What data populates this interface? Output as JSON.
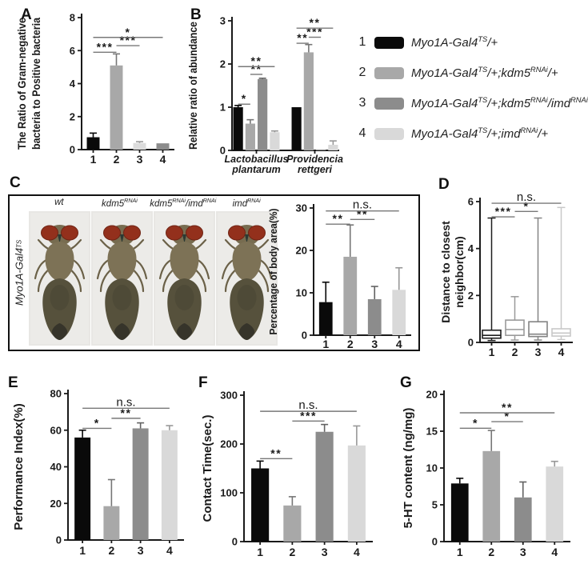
{
  "panel_letters": {
    "A": "A",
    "B": "B",
    "C": "C",
    "D": "D",
    "E": "E",
    "F": "F",
    "G": "G"
  },
  "group_colors": {
    "1": "#0a0a0a",
    "2": "#a8a8a8",
    "3": "#8c8c8c",
    "4": "#d9d9d9"
  },
  "legend": {
    "items": [
      {
        "number": "1",
        "color": "#0a0a0a",
        "parts": [
          {
            "t": "Myo1A-Gal4"
          },
          {
            "t": "TS",
            "sup": 1
          },
          {
            "t": "/+"
          }
        ]
      },
      {
        "number": "2",
        "color": "#a8a8a8",
        "parts": [
          {
            "t": "Myo1A-Gal4"
          },
          {
            "t": "TS",
            "sup": 1
          },
          {
            "t": "/+;kdm5"
          },
          {
            "t": "RNAi",
            "sup": 1
          },
          {
            "t": "/+"
          }
        ]
      },
      {
        "number": "3",
        "color": "#8c8c8c",
        "parts": [
          {
            "t": "Myo1A-Gal4"
          },
          {
            "t": "TS",
            "sup": 1
          },
          {
            "t": "/+;kdm5"
          },
          {
            "t": "RNAi",
            "sup": 1
          },
          {
            "t": "/imd"
          },
          {
            "t": "RNAi",
            "sup": 1
          }
        ]
      },
      {
        "number": "4",
        "color": "#d9d9d9",
        "parts": [
          {
            "t": "Myo1A-Gal4"
          },
          {
            "t": "TS",
            "sup": 1
          },
          {
            "t": "/+;imd"
          },
          {
            "t": "RNAi",
            "sup": 1
          },
          {
            "t": "/+"
          }
        ]
      }
    ]
  },
  "panel_c": {
    "side_label_parts": [
      {
        "t": "Myo1A-Gal4"
      },
      {
        "t": "TS",
        "sup": 1
      }
    ],
    "fly_labels": [
      [
        {
          "t": "wt"
        }
      ],
      [
        {
          "t": "kdm5"
        },
        {
          "t": "RNAi",
          "sup": 1
        }
      ],
      [
        {
          "t": "kdm5"
        },
        {
          "t": "RNAi",
          "sup": 1
        },
        {
          "t": "/imd"
        },
        {
          "t": "RNAi",
          "sup": 1
        }
      ],
      [
        {
          "t": "imd"
        },
        {
          "t": "RNAi",
          "sup": 1
        }
      ]
    ]
  },
  "chart_data": [
    {
      "panel": "A",
      "type": "bar",
      "ylabel_lines": [
        "The Ratio of Gram-negative",
        "bacteria to Positive bacteria"
      ],
      "ylim": [
        0,
        8
      ],
      "yticks": [
        0,
        2,
        4,
        6,
        8
      ],
      "categories": [
        "1",
        "2",
        "3",
        "4"
      ],
      "values": [
        0.75,
        5.1,
        0.4,
        0.38
      ],
      "errors": [
        0.25,
        0.7,
        0.08,
        0
      ],
      "colors": [
        "#0a0a0a",
        "#a8a8a8",
        "#dcdcdc",
        "#8c8c8c"
      ],
      "sig": [
        {
          "a": 0,
          "b": 1,
          "y": 5.9,
          "label": "***"
        },
        {
          "a": 1,
          "b": 2,
          "y": 6.3,
          "label": "***"
        },
        {
          "a": 0,
          "b": 3,
          "y": 6.8,
          "label": "*"
        }
      ]
    },
    {
      "panel": "B",
      "type": "grouped-bar",
      "ylabel": "Relative ratio of abundance",
      "ylim": [
        0,
        3
      ],
      "yticks": [
        0,
        1,
        2,
        3
      ],
      "group_labels": [
        [
          "Lactobacillus",
          "plantarum"
        ],
        [
          "Providencia",
          "rettgeri"
        ]
      ],
      "series_labels": [
        "1",
        "2",
        "3",
        "4"
      ],
      "groups": [
        {
          "values": [
            1.0,
            0.62,
            1.65,
            0.42
          ],
          "errors": [
            0.04,
            0.09,
            0.02,
            0.03
          ]
        },
        {
          "values": [
            1.0,
            2.27,
            0.02,
            0.13
          ],
          "errors": [
            0,
            0.18,
            0,
            0.09
          ]
        }
      ],
      "colors": [
        "#0a0a0a",
        "#a8a8a8",
        "#8c8c8c",
        "#d9d9d9"
      ],
      "sig": [
        {
          "a": 0,
          "b": 1,
          "y": 1.07,
          "label": "*"
        },
        {
          "a": 1,
          "b": 2,
          "y": 1.76,
          "label": "**"
        },
        {
          "a": 0,
          "b": 3,
          "y": 1.94,
          "label": "**"
        },
        {
          "a": 4,
          "b": 5,
          "y": 2.48,
          "label": "**"
        },
        {
          "a": 5,
          "b": 6,
          "y": 2.62,
          "label": "***"
        },
        {
          "a": 4,
          "b": 7,
          "y": 2.83,
          "label": "**"
        }
      ]
    },
    {
      "panel": "C",
      "type": "bar",
      "ylabel": "Percentage of body area(%)",
      "ylim": [
        0,
        30
      ],
      "yticks": [
        0,
        10,
        20,
        30
      ],
      "categories": [
        "1",
        "2",
        "3",
        "4"
      ],
      "values": [
        7.8,
        18.5,
        8.5,
        10.7
      ],
      "errors": [
        4.7,
        7.5,
        3.0,
        5.2
      ],
      "colors": [
        "#0a0a0a",
        "#a8a8a8",
        "#8c8c8c",
        "#d9d9d9"
      ],
      "sig": [
        {
          "a": 0,
          "b": 1,
          "y": 26.2,
          "label": "**"
        },
        {
          "a": 1,
          "b": 2,
          "y": 27.3,
          "label": "**"
        },
        {
          "a": 0,
          "b": 3,
          "y": 29.3,
          "label": "n.s."
        }
      ]
    },
    {
      "panel": "D",
      "type": "box",
      "ylabel_lines": [
        "Distance to closest",
        "neighbor(cm)"
      ],
      "ylim": [
        0,
        6
      ],
      "yticks": [
        0,
        2,
        4,
        6
      ],
      "categories": [
        "1",
        "2",
        "3",
        "4"
      ],
      "boxes": [
        {
          "lo": 0.08,
          "q1": 0.18,
          "med": 0.3,
          "q3": 0.52,
          "hi": 5.3
        },
        {
          "lo": 0.1,
          "q1": 0.3,
          "med": 0.55,
          "q3": 0.95,
          "hi": 1.95
        },
        {
          "lo": 0.1,
          "q1": 0.25,
          "med": 0.35,
          "q3": 0.88,
          "hi": 5.3
        },
        {
          "lo": 0.12,
          "q1": 0.27,
          "med": 0.4,
          "q3": 0.58,
          "hi": 5.75
        }
      ],
      "colors": [
        "#1f1f1f",
        "#9a9a9a",
        "#848484",
        "#c8c8c8"
      ],
      "sig": [
        {
          "a": 0,
          "b": 1,
          "y": 5.35,
          "label": "***"
        },
        {
          "a": 1,
          "b": 2,
          "y": 5.58,
          "label": "*"
        },
        {
          "a": 0,
          "b": 3,
          "y": 5.93,
          "label": "n.s."
        }
      ]
    },
    {
      "panel": "E",
      "type": "bar",
      "ylabel": "Performance Index(%)",
      "ylim": [
        0,
        80
      ],
      "yticks": [
        0,
        20,
        40,
        60,
        80
      ],
      "categories": [
        "1",
        "2",
        "3",
        "4"
      ],
      "values": [
        56,
        18.5,
        61,
        60
      ],
      "errors": [
        4,
        14.5,
        3,
        2.5
      ],
      "colors": [
        "#0a0a0a",
        "#a8a8a8",
        "#8c8c8c",
        "#d9d9d9"
      ],
      "sig": [
        {
          "a": 0,
          "b": 1,
          "y": 61,
          "label": "*"
        },
        {
          "a": 1,
          "b": 2,
          "y": 66.5,
          "label": "**"
        },
        {
          "a": 0,
          "b": 3,
          "y": 72,
          "label": "n.s."
        }
      ]
    },
    {
      "panel": "F",
      "type": "bar",
      "ylabel": "Contact Time(sec.)",
      "ylim": [
        0,
        300
      ],
      "yticks": [
        0,
        100,
        200,
        300
      ],
      "categories": [
        "1",
        "2",
        "3",
        "4"
      ],
      "values": [
        150,
        74,
        225,
        197
      ],
      "errors": [
        15,
        18,
        15,
        40
      ],
      "colors": [
        "#0a0a0a",
        "#a8a8a8",
        "#8c8c8c",
        "#d9d9d9"
      ],
      "sig": [
        {
          "a": 0,
          "b": 1,
          "y": 170,
          "label": "**"
        },
        {
          "a": 1,
          "b": 2,
          "y": 247,
          "label": "***"
        },
        {
          "a": 0,
          "b": 3,
          "y": 267,
          "label": "n.s."
        }
      ]
    },
    {
      "panel": "G",
      "type": "bar",
      "ylabel": "5-HT content (ng/mg)",
      "ylim": [
        0,
        20
      ],
      "yticks": [
        0,
        5,
        10,
        15,
        20
      ],
      "categories": [
        "1",
        "2",
        "3",
        "4"
      ],
      "values": [
        7.9,
        12.3,
        6.0,
        10.2
      ],
      "errors": [
        0.7,
        2.8,
        2.1,
        0.7
      ],
      "colors": [
        "#0a0a0a",
        "#a8a8a8",
        "#8c8c8c",
        "#d9d9d9"
      ],
      "sig": [
        {
          "a": 0,
          "b": 1,
          "y": 15.4,
          "label": "*"
        },
        {
          "a": 1,
          "b": 2,
          "y": 16.3,
          "label": "*"
        },
        {
          "a": 0,
          "b": 3,
          "y": 17.5,
          "label": "**"
        }
      ]
    }
  ]
}
